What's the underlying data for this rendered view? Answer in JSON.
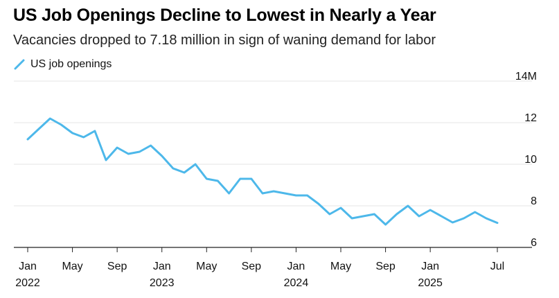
{
  "title": "US Job Openings Decline to Lowest in Nearly a Year",
  "subtitle": "Vacancies dropped to 7.18 million in sign of waning demand for labor",
  "colors": {
    "series": "#4db8ea",
    "grid": "#e6e6e6",
    "axis": "#222222",
    "text": "#111111"
  },
  "chart_data": {
    "type": "line",
    "x_unit": "month",
    "series": [
      {
        "name": "US job openings",
        "x": [
          "2022-01",
          "2022-02",
          "2022-03",
          "2022-04",
          "2022-05",
          "2022-06",
          "2022-07",
          "2022-08",
          "2022-09",
          "2022-10",
          "2022-11",
          "2022-12",
          "2023-01",
          "2023-02",
          "2023-03",
          "2023-04",
          "2023-05",
          "2023-06",
          "2023-07",
          "2023-08",
          "2023-09",
          "2023-10",
          "2023-11",
          "2023-12",
          "2024-01",
          "2024-02",
          "2024-03",
          "2024-04",
          "2024-05",
          "2024-06",
          "2024-07",
          "2024-08",
          "2024-09",
          "2024-10",
          "2024-11",
          "2024-12",
          "2025-01",
          "2025-02",
          "2025-03",
          "2025-04",
          "2025-05",
          "2025-06",
          "2025-07"
        ],
        "values": [
          11.2,
          11.7,
          12.2,
          11.9,
          11.5,
          11.3,
          11.6,
          10.2,
          10.8,
          10.5,
          10.6,
          10.9,
          10.4,
          9.8,
          9.6,
          10.0,
          9.3,
          9.2,
          8.6,
          9.3,
          9.3,
          8.6,
          8.7,
          8.6,
          8.5,
          8.5,
          8.1,
          7.6,
          7.9,
          7.4,
          7.5,
          7.6,
          7.1,
          7.6,
          8.0,
          7.5,
          7.8,
          7.5,
          7.2,
          7.4,
          7.7,
          7.4,
          7.18
        ]
      }
    ],
    "ylim": [
      6,
      14
    ],
    "y_ticks": [
      6,
      8,
      10,
      12,
      14
    ],
    "y_tick_labels": [
      "6",
      "8",
      "10",
      "12",
      "14M"
    ],
    "x_ticks": [
      {
        "x": "2022-01",
        "label": "Jan",
        "year": "2022"
      },
      {
        "x": "2022-05",
        "label": "May",
        "year": ""
      },
      {
        "x": "2022-09",
        "label": "Sep",
        "year": ""
      },
      {
        "x": "2023-01",
        "label": "Jan",
        "year": "2023"
      },
      {
        "x": "2023-05",
        "label": "May",
        "year": ""
      },
      {
        "x": "2023-09",
        "label": "Sep",
        "year": ""
      },
      {
        "x": "2024-01",
        "label": "Jan",
        "year": "2024"
      },
      {
        "x": "2024-05",
        "label": "May",
        "year": ""
      },
      {
        "x": "2024-09",
        "label": "Sep",
        "year": ""
      },
      {
        "x": "2025-01",
        "label": "Jan",
        "year": "2025"
      },
      {
        "x": "2025-07",
        "label": "Jul",
        "year": ""
      }
    ],
    "grid": true,
    "y_axis_side": "right",
    "legend_position": "top-left"
  }
}
